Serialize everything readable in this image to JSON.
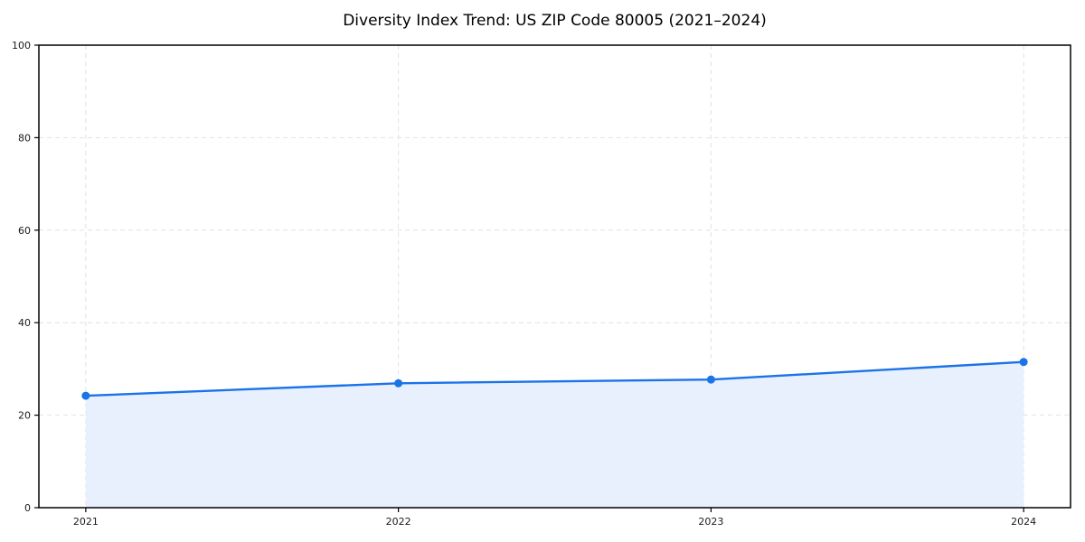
{
  "page": {
    "background": "#ffffff"
  },
  "chart_data": {
    "type": "area",
    "title": "Diversity Index Trend: US ZIP Code 80005 (2021–2024)",
    "x": [
      2021,
      2022,
      2023,
      2024
    ],
    "x_tick_labels": [
      "2021",
      "2022",
      "2023",
      "2024"
    ],
    "series": [
      {
        "name": "Diversity Index",
        "values": [
          24.2,
          26.9,
          27.7,
          31.5
        ]
      }
    ],
    "xlabel": "",
    "ylabel": "",
    "ylim": [
      0,
      100
    ],
    "y_ticks": [
      0,
      20,
      40,
      60,
      80,
      100
    ],
    "grid": "dashed",
    "legend": "none",
    "line_color": "#1a73e8",
    "marker_color": "#1a73e8",
    "fill_color": "#e8f0fd",
    "grid_color": "#e2e2e2",
    "axis_color": "#000000",
    "tick_label_color": "#1a1a1a"
  }
}
